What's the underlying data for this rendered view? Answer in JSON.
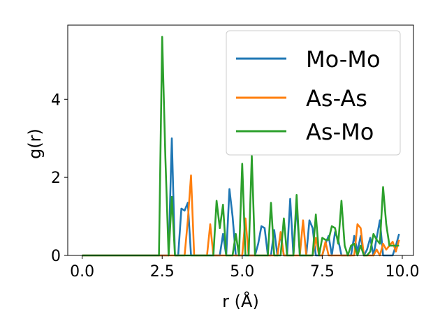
{
  "chart_data": {
    "type": "line",
    "xlabel": "r (Å)",
    "ylabel": "g(r)",
    "xlim": [
      -0.45,
      10.35
    ],
    "ylim": [
      0,
      5.9
    ],
    "xticks": [
      0.0,
      2.5,
      5.0,
      7.5,
      10.0
    ],
    "xtick_labels": [
      "0.0",
      "2.5",
      "5.0",
      "7.5",
      "10.0"
    ],
    "yticks": [
      0,
      2,
      4
    ],
    "ytick_labels": [
      "0",
      "2",
      "4"
    ],
    "grid": false,
    "legend_position": "top-right",
    "series": [
      {
        "name": "Mo-Mo",
        "color": "#1f77b4",
        "x": [
          0.0,
          2.4,
          2.6,
          2.7,
          2.8,
          2.9,
          3.0,
          3.1,
          3.2,
          3.3,
          3.4,
          3.5,
          3.6,
          3.7,
          3.8,
          3.9,
          4.0,
          4.1,
          4.2,
          4.3,
          4.4,
          4.5,
          4.6,
          4.7,
          4.8,
          4.9,
          5.0,
          5.1,
          5.2,
          5.3,
          5.4,
          5.5,
          5.6,
          5.7,
          5.8,
          5.9,
          6.0,
          6.1,
          6.2,
          6.3,
          6.4,
          6.5,
          6.6,
          6.7,
          6.8,
          6.9,
          7.0,
          7.1,
          7.2,
          7.3,
          7.4,
          7.5,
          7.6,
          7.7,
          7.8,
          7.9,
          8.0,
          8.1,
          8.2,
          8.3,
          8.4,
          8.5,
          8.6,
          8.7,
          8.8,
          8.9,
          9.0,
          9.1,
          9.2,
          9.3,
          9.4,
          9.5,
          9.6,
          9.7,
          9.8,
          9.9
        ],
        "y": [
          0.0,
          0.0,
          0.0,
          0.0,
          3.0,
          0.0,
          0.0,
          1.2,
          1.15,
          1.35,
          0.0,
          0.0,
          0.0,
          0.0,
          0.0,
          0.0,
          0.0,
          0.0,
          0.0,
          0.0,
          0.55,
          0.0,
          1.7,
          1.0,
          0.0,
          0.0,
          0.0,
          0.0,
          0.0,
          0.0,
          0.0,
          0.3,
          0.75,
          0.7,
          0.0,
          0.0,
          0.65,
          0.0,
          0.55,
          0.0,
          0.0,
          1.45,
          0.0,
          1.3,
          0.0,
          0.0,
          0.0,
          0.9,
          0.7,
          0.0,
          0.0,
          0.0,
          0.3,
          0.5,
          0.0,
          0.6,
          0.4,
          0.0,
          0.0,
          0.0,
          0.0,
          0.5,
          0.1,
          0.5,
          0.0,
          0.15,
          0.45,
          0.0,
          0.45,
          0.9,
          0.0,
          0.0,
          0.0,
          0.0,
          0.25,
          0.55
        ]
      },
      {
        "name": "As-As",
        "color": "#ff7f0e",
        "x": [
          0.0,
          3.1,
          3.2,
          3.3,
          3.4,
          3.5,
          3.6,
          3.7,
          3.8,
          3.9,
          4.0,
          4.1,
          4.2,
          4.3,
          4.4,
          4.5,
          4.6,
          4.7,
          4.8,
          4.9,
          5.0,
          5.1,
          5.2,
          5.3,
          5.4,
          5.5,
          5.6,
          5.7,
          5.8,
          5.9,
          6.0,
          6.1,
          6.2,
          6.3,
          6.4,
          6.5,
          6.6,
          6.7,
          6.8,
          6.9,
          7.0,
          7.1,
          7.2,
          7.3,
          7.4,
          7.5,
          7.6,
          7.7,
          7.8,
          7.9,
          8.0,
          8.1,
          8.2,
          8.3,
          8.4,
          8.5,
          8.6,
          8.7,
          8.8,
          8.9,
          9.0,
          9.1,
          9.2,
          9.3,
          9.4,
          9.5,
          9.6,
          9.7,
          9.8,
          9.9
        ],
        "y": [
          0.0,
          0.0,
          0.0,
          0.9,
          2.05,
          0.0,
          0.0,
          0.0,
          0.0,
          0.0,
          0.8,
          0.0,
          0.0,
          0.0,
          0.0,
          0.0,
          0.0,
          0.0,
          0.0,
          0.0,
          0.0,
          0.95,
          0.0,
          0.0,
          0.0,
          0.0,
          0.0,
          0.0,
          0.0,
          0.0,
          0.0,
          0.0,
          0.6,
          0.0,
          0.0,
          0.0,
          0.0,
          0.0,
          0.0,
          0.9,
          0.0,
          0.0,
          0.0,
          0.45,
          0.0,
          0.0,
          0.35,
          0.0,
          0.0,
          0.0,
          0.0,
          0.0,
          0.0,
          0.0,
          0.0,
          0.0,
          0.8,
          0.7,
          0.0,
          0.0,
          0.0,
          0.0,
          0.15,
          0.0,
          0.3,
          0.15,
          0.25,
          0.35,
          0.1,
          0.4
        ]
      },
      {
        "name": "As-Mo",
        "color": "#2ca02c",
        "x": [
          0.0,
          2.4,
          2.5,
          2.6,
          2.7,
          2.8,
          2.9,
          3.0,
          3.1,
          3.2,
          3.3,
          3.4,
          3.5,
          3.6,
          3.7,
          3.8,
          3.9,
          4.0,
          4.1,
          4.2,
          4.3,
          4.4,
          4.5,
          4.6,
          4.7,
          4.8,
          4.9,
          5.0,
          5.1,
          5.2,
          5.3,
          5.4,
          5.5,
          5.6,
          5.7,
          5.8,
          5.9,
          6.0,
          6.1,
          6.2,
          6.3,
          6.4,
          6.5,
          6.6,
          6.7,
          6.8,
          6.9,
          7.0,
          7.1,
          7.2,
          7.3,
          7.4,
          7.5,
          7.6,
          7.7,
          7.8,
          7.9,
          8.0,
          8.1,
          8.2,
          8.3,
          8.4,
          8.5,
          8.6,
          8.7,
          8.8,
          8.9,
          9.0,
          9.1,
          9.2,
          9.3,
          9.4,
          9.5,
          9.6,
          9.7,
          9.8,
          9.9
        ],
        "y": [
          0.0,
          0.0,
          5.6,
          2.5,
          0.0,
          1.5,
          0.0,
          0.0,
          0.0,
          0.0,
          0.0,
          0.0,
          0.0,
          0.0,
          0.0,
          0.0,
          0.0,
          0.0,
          0.0,
          1.4,
          0.7,
          1.3,
          0.0,
          0.0,
          0.0,
          0.55,
          0.0,
          2.35,
          0.0,
          0.0,
          2.55,
          0.0,
          0.0,
          0.0,
          0.0,
          0.0,
          1.35,
          0.0,
          0.0,
          0.0,
          0.95,
          0.0,
          0.0,
          0.0,
          1.55,
          0.0,
          0.0,
          0.0,
          0.0,
          0.0,
          1.05,
          0.0,
          0.45,
          0.4,
          0.4,
          0.75,
          0.7,
          0.3,
          1.4,
          0.25,
          0.0,
          0.25,
          0.3,
          0.0,
          0.25,
          0.0,
          0.0,
          0.1,
          0.55,
          0.4,
          0.3,
          1.75,
          0.8,
          0.25,
          0.25,
          0.25,
          0.25
        ]
      }
    ]
  }
}
